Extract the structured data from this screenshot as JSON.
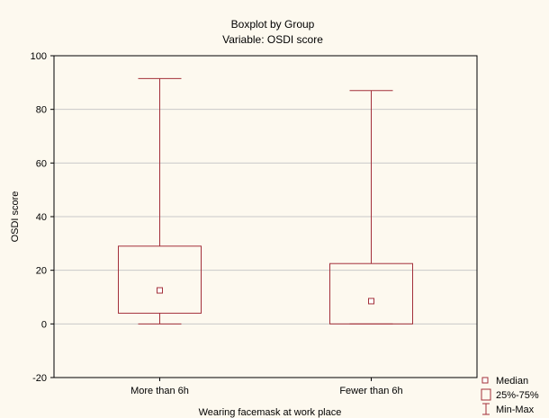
{
  "chart_data": {
    "type": "boxplot",
    "title": "Boxplot by Group",
    "subtitle": "Variable: OSDI score",
    "xlabel": "Wearing facemask at work place",
    "ylabel": "OSDI score",
    "ylim": [
      -20,
      100
    ],
    "yticks": [
      -20,
      0,
      20,
      40,
      60,
      80,
      100
    ],
    "grid": true,
    "legend_position": "bottom-right",
    "categories": [
      "More than 6h",
      "Fewer than 6h"
    ],
    "groups": [
      {
        "category": "More than 6h",
        "min": 0,
        "q1": 4,
        "median": 12.5,
        "q3": 29,
        "max": 91.5
      },
      {
        "category": "Fewer than 6h",
        "min": 0,
        "q1": 0,
        "median": 8.5,
        "q3": 22.5,
        "max": 87
      }
    ],
    "legend": [
      {
        "label": "Median",
        "symbol": "square-marker"
      },
      {
        "label": "25%-75%",
        "symbol": "box"
      },
      {
        "label": "Min-Max",
        "symbol": "whisker"
      }
    ],
    "color": "#a3303a"
  }
}
